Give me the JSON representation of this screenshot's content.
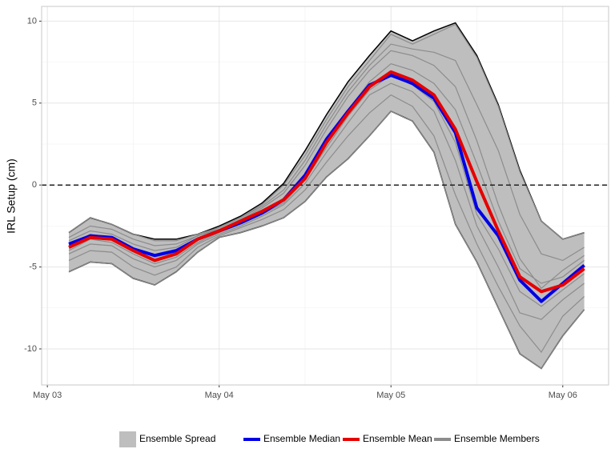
{
  "chart_data": {
    "type": "ensemble",
    "y_label": "IRL Setup (cm)",
    "x": [
      3,
      6,
      9,
      12,
      15,
      18,
      21,
      24,
      27,
      30,
      33,
      36,
      39,
      42,
      45,
      48,
      51,
      54,
      57,
      60,
      63,
      66,
      69,
      72,
      75
    ],
    "xlim": [
      -0.8,
      78.4
    ],
    "xticks": [
      {
        "value": 0,
        "label": "May 03"
      },
      {
        "value": 24,
        "label": "May 04"
      },
      {
        "value": 48,
        "label": "May 05"
      },
      {
        "value": 72,
        "label": "May 06"
      }
    ],
    "ylim": [
      -12.2,
      10.9
    ],
    "yticks": [
      10,
      5,
      0,
      -5,
      -10
    ],
    "grid": true,
    "hline": 0,
    "spread": {
      "name": "Ensemble Spread",
      "color": "#bebebe",
      "upper": [
        -2.9,
        -2.0,
        -2.4,
        -3.0,
        -3.3,
        -3.3,
        -3.0,
        -2.5,
        -1.9,
        -1.1,
        0.1,
        2.1,
        4.3,
        6.3,
        7.9,
        9.4,
        8.8,
        9.4,
        9.9,
        7.9,
        4.9,
        0.9,
        -2.2,
        -3.3,
        -2.9
      ],
      "lower": [
        -5.3,
        -4.7,
        -4.8,
        -5.7,
        -6.1,
        -5.3,
        -4.1,
        -3.2,
        -2.9,
        -2.5,
        -2.0,
        -1.0,
        0.5,
        1.6,
        3.0,
        4.5,
        3.9,
        2.0,
        -2.4,
        -4.7,
        -7.5,
        -10.3,
        -11.2,
        -9.2,
        -7.6
      ]
    },
    "members": {
      "name": "Ensemble Members",
      "color": "#8c8c8c",
      "runs": [
        [
          -2.9,
          -2.0,
          -2.4,
          -3.0,
          -3.4,
          -3.4,
          -3.0,
          -2.6,
          -2.0,
          -1.2,
          0.0,
          1.8,
          4.0,
          6.0,
          7.6,
          9.2,
          8.6,
          9.2,
          9.8,
          7.8,
          4.8,
          0.8,
          -2.2,
          -3.3,
          -2.9
        ],
        [
          -5.3,
          -4.7,
          -4.8,
          -5.7,
          -6.1,
          -5.3,
          -4.1,
          -3.2,
          -2.9,
          -2.5,
          -2.0,
          -1.0,
          0.5,
          1.6,
          3.0,
          4.5,
          3.9,
          2.0,
          -2.4,
          -4.7,
          -7.5,
          -10.3,
          -11.2,
          -9.2,
          -7.6
        ],
        [
          -3.4,
          -2.8,
          -3.0,
          -3.6,
          -4.0,
          -3.8,
          -3.1,
          -2.7,
          -2.1,
          -1.4,
          -0.5,
          1.2,
          3.4,
          5.4,
          7.0,
          8.2,
          7.9,
          7.3,
          6.0,
          2.7,
          -1.2,
          -4.5,
          -6.3,
          -5.2,
          -4.3
        ],
        [
          -4.2,
          -3.6,
          -3.7,
          -4.5,
          -5.0,
          -4.6,
          -3.6,
          -3.0,
          -2.5,
          -1.9,
          -1.2,
          0.1,
          2.0,
          3.8,
          5.5,
          6.2,
          5.7,
          4.5,
          1.5,
          -2.5,
          -5.0,
          -7.8,
          -8.2,
          -7.0,
          -6.0
        ],
        [
          -3.7,
          -3.0,
          -3.2,
          -3.9,
          -4.4,
          -4.1,
          -3.3,
          -2.8,
          -2.3,
          -1.7,
          -0.9,
          0.5,
          2.7,
          4.6,
          6.3,
          7.4,
          7.0,
          6.2,
          4.6,
          1.3,
          -2.2,
          -5.1,
          -6.0,
          -5.6,
          -4.6
        ],
        [
          -4.6,
          -4.0,
          -4.1,
          -5.0,
          -5.5,
          -5.0,
          -3.8,
          -3.1,
          -2.6,
          -2.1,
          -1.5,
          -0.3,
          1.4,
          3.0,
          4.4,
          5.5,
          4.8,
          3.0,
          -0.6,
          -3.6,
          -6.2,
          -8.6,
          -10.2,
          -8.0,
          -6.8
        ],
        [
          -3.2,
          -2.5,
          -2.7,
          -3.3,
          -3.7,
          -3.6,
          -3.1,
          -2.6,
          -2.0,
          -1.3,
          -0.3,
          1.5,
          3.7,
          5.7,
          7.3,
          8.6,
          8.3,
          8.1,
          7.6,
          4.9,
          2.1,
          -1.8,
          -4.2,
          -4.6,
          -3.8
        ],
        [
          -4.0,
          -3.3,
          -3.5,
          -4.2,
          -4.8,
          -4.4,
          -3.5,
          -2.9,
          -2.4,
          -1.8,
          -1.1,
          0.3,
          2.3,
          4.2,
          5.8,
          6.7,
          6.1,
          5.1,
          2.6,
          -1.8,
          -3.9,
          -6.5,
          -7.4,
          -6.4,
          -5.4
        ]
      ]
    },
    "series": [
      {
        "name": "Ensemble Median",
        "color": "#0000e6",
        "values": [
          -3.6,
          -3.1,
          -3.2,
          -3.9,
          -4.3,
          -4.0,
          -3.3,
          -2.8,
          -2.3,
          -1.7,
          -0.9,
          0.6,
          2.8,
          4.5,
          6.1,
          6.7,
          6.2,
          5.3,
          3.2,
          -1.4,
          -3.1,
          -5.8,
          -7.1,
          -6.0,
          -4.9
        ]
      },
      {
        "name": "Ensemble Mean",
        "color": "#e60000",
        "values": [
          -3.8,
          -3.2,
          -3.3,
          -4.0,
          -4.6,
          -4.2,
          -3.3,
          -2.8,
          -2.2,
          -1.6,
          -0.9,
          0.4,
          2.6,
          4.4,
          6.0,
          6.9,
          6.4,
          5.5,
          3.4,
          0.2,
          -2.8,
          -5.6,
          -6.5,
          -6.1,
          -5.1
        ]
      }
    ]
  }
}
